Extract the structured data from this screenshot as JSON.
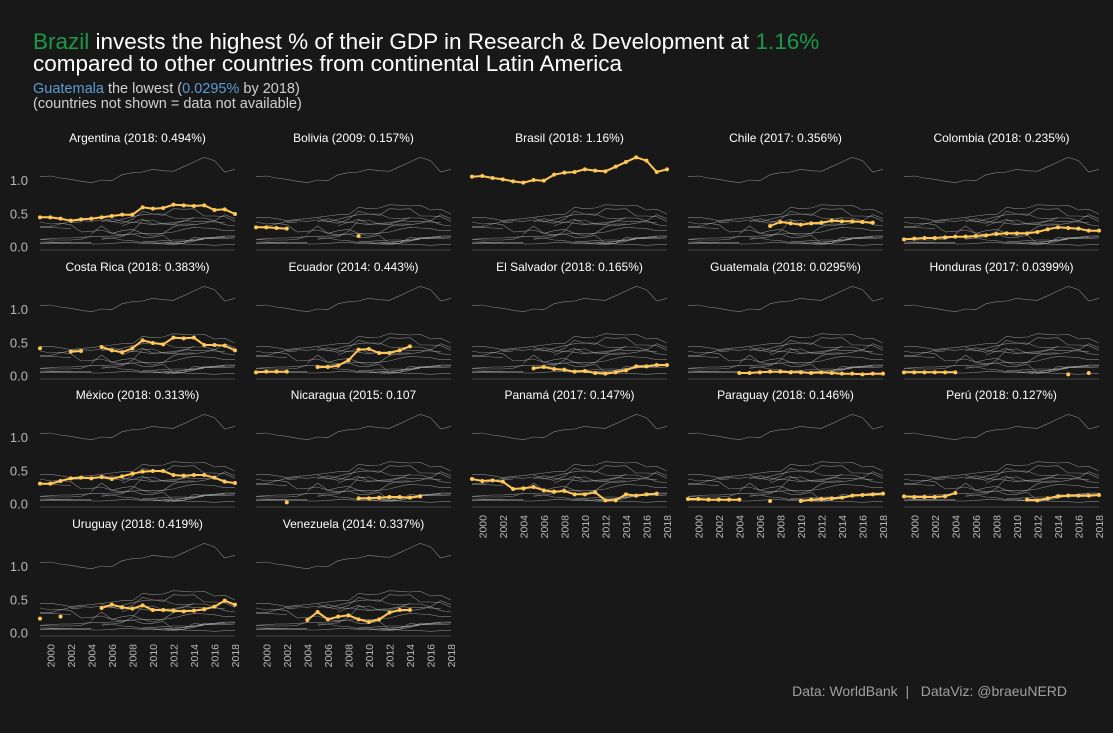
{
  "title": {
    "line1": [
      {
        "text": "Brazil",
        "cls": "hl-green"
      },
      {
        "text": " invests the highest % of their GDP in Research & Development at ",
        "cls": ""
      },
      {
        "text": "1.16%",
        "cls": "hl-green"
      }
    ],
    "line2": "compared to other countries from continental Latin America"
  },
  "subtitle": {
    "line1": [
      {
        "text": "Guatemala",
        "cls": "hl-blue"
      },
      {
        "text": " the lowest (",
        "cls": ""
      },
      {
        "text": "0.0295%",
        "cls": "hl-blue"
      },
      {
        "text": " by 2018)",
        "cls": ""
      }
    ],
    "line2": "(countries not shown = data not available)"
  },
  "caption": "Data: WorldBank  |   DataViz: @braeuNERD",
  "colors": {
    "background": "#181818",
    "highlight": "#ffc857",
    "context": "#a8a8a8",
    "green": "#1a9a45",
    "blue": "#5b9bd5"
  },
  "chart_data": {
    "type": "line",
    "layout": "small-multiples",
    "x_ticks": [
      2000,
      2002,
      2004,
      2006,
      2008,
      2010,
      2012,
      2014,
      2016,
      2018
    ],
    "xlim": [
      1999,
      2018
    ],
    "y_ticks": [
      0.0,
      0.5,
      1.0
    ],
    "ylim": [
      -0.05,
      1.45
    ],
    "series": [
      {
        "name": "Argentina (2018: 0.494%)",
        "x": [
          1999,
          2000,
          2001,
          2002,
          2003,
          2004,
          2005,
          2006,
          2007,
          2008,
          2009,
          2010,
          2011,
          2012,
          2013,
          2014,
          2015,
          2016,
          2017,
          2018
        ],
        "values": [
          0.44,
          0.44,
          0.42,
          0.39,
          0.41,
          0.42,
          0.44,
          0.46,
          0.48,
          0.48,
          0.59,
          0.57,
          0.58,
          0.63,
          0.62,
          0.61,
          0.62,
          0.55,
          0.56,
          0.49
        ]
      },
      {
        "name": "Bolivia (2009: 0.157%)",
        "x": [
          1999,
          2000,
          2001,
          2002,
          2009
        ],
        "values": [
          0.29,
          0.29,
          0.28,
          0.27,
          0.16
        ]
      },
      {
        "name": "Brasil (2018: 1.16%)",
        "x": [
          1999,
          2000,
          2001,
          2002,
          2003,
          2004,
          2005,
          2006,
          2007,
          2008,
          2009,
          2010,
          2011,
          2012,
          2013,
          2014,
          2015,
          2016,
          2017,
          2018
        ],
        "values": [
          1.05,
          1.06,
          1.03,
          1.01,
          0.98,
          0.96,
          1.0,
          0.99,
          1.08,
          1.11,
          1.12,
          1.16,
          1.14,
          1.13,
          1.2,
          1.27,
          1.34,
          1.29,
          1.12,
          1.16
        ]
      },
      {
        "name": "Chile (2017: 0.356%)",
        "x": [
          2007,
          2008,
          2009,
          2010,
          2011,
          2012,
          2013,
          2014,
          2015,
          2016,
          2017
        ],
        "values": [
          0.31,
          0.37,
          0.35,
          0.33,
          0.35,
          0.36,
          0.39,
          0.38,
          0.38,
          0.37,
          0.36
        ]
      },
      {
        "name": "Colombia (2018: 0.235%)",
        "x": [
          1999,
          2000,
          2001,
          2002,
          2003,
          2004,
          2005,
          2006,
          2007,
          2008,
          2009,
          2010,
          2011,
          2012,
          2013,
          2014,
          2015,
          2016,
          2017,
          2018
        ],
        "values": [
          0.11,
          0.12,
          0.13,
          0.13,
          0.14,
          0.15,
          0.15,
          0.16,
          0.17,
          0.19,
          0.2,
          0.2,
          0.2,
          0.22,
          0.26,
          0.29,
          0.28,
          0.27,
          0.24,
          0.24
        ]
      },
      {
        "name": "Costa Rica (2018: 0.383%)",
        "x": [
          1999,
          2000,
          2002,
          2003,
          2005,
          2006,
          2007,
          2008,
          2009,
          2010,
          2011,
          2012,
          2013,
          2014,
          2015,
          2016,
          2017,
          2018
        ],
        "values": [
          0.41,
          null,
          0.36,
          0.37,
          0.43,
          0.38,
          0.35,
          0.41,
          0.53,
          0.49,
          0.47,
          0.57,
          0.56,
          0.57,
          0.46,
          0.46,
          0.45,
          0.38
        ]
      },
      {
        "name": "Ecuador (2014: 0.443%)",
        "x": [
          1999,
          2000,
          2001,
          2002,
          2005,
          2006,
          2007,
          2008,
          2009,
          2010,
          2011,
          2012,
          2013,
          2014
        ],
        "values": [
          0.05,
          0.06,
          0.06,
          0.06,
          0.13,
          0.13,
          0.15,
          0.23,
          0.39,
          0.4,
          0.34,
          0.34,
          0.38,
          0.44
        ]
      },
      {
        "name": "El Salvador (2018: 0.165%)",
        "x": [
          2005,
          2006,
          2007,
          2008,
          2009,
          2010,
          2011,
          2012,
          2013,
          2014,
          2015,
          2016,
          2017,
          2018
        ],
        "values": [
          0.11,
          0.13,
          0.1,
          0.09,
          0.06,
          0.07,
          0.04,
          0.03,
          0.05,
          0.08,
          0.14,
          0.14,
          0.16,
          0.16
        ]
      },
      {
        "name": "Guatemala (2018: 0.0295%)",
        "x": [
          2004,
          2005,
          2006,
          2007,
          2008,
          2009,
          2010,
          2011,
          2012,
          2013,
          2014,
          2015,
          2016,
          2017,
          2018
        ],
        "values": [
          0.04,
          0.04,
          0.05,
          0.06,
          0.06,
          0.05,
          0.05,
          0.04,
          0.05,
          0.04,
          0.03,
          0.03,
          0.02,
          0.03,
          0.03
        ]
      },
      {
        "name": "Honduras (2017: 0.0399%)",
        "x": [
          1999,
          2000,
          2001,
          2002,
          2003,
          2004,
          2015,
          2017
        ],
        "values": [
          0.05,
          0.05,
          0.05,
          0.05,
          0.05,
          0.05,
          0.02,
          0.04
        ]
      },
      {
        "name": "México (2018: 0.313%)",
        "x": [
          1999,
          2000,
          2001,
          2002,
          2003,
          2004,
          2005,
          2006,
          2007,
          2008,
          2009,
          2010,
          2011,
          2012,
          2013,
          2014,
          2015,
          2016,
          2017,
          2018
        ],
        "values": [
          0.3,
          0.3,
          0.34,
          0.38,
          0.39,
          0.38,
          0.4,
          0.37,
          0.41,
          0.45,
          0.48,
          0.49,
          0.49,
          0.43,
          0.42,
          0.43,
          0.43,
          0.39,
          0.33,
          0.31
        ]
      },
      {
        "name": "Nicaragua (2015: 0.107",
        "x": [
          2002,
          2009,
          2010,
          2011,
          2012,
          2013,
          2014,
          2015
        ],
        "values": [
          0.02,
          0.08,
          0.08,
          0.09,
          0.1,
          0.1,
          0.09,
          0.11
        ]
      },
      {
        "name": "Panamá (2017: 0.147%)",
        "x": [
          1999,
          2000,
          2001,
          2002,
          2003,
          2004,
          2005,
          2006,
          2007,
          2008,
          2009,
          2010,
          2011,
          2012,
          2013,
          2014,
          2015,
          2016,
          2017
        ],
        "values": [
          0.37,
          0.34,
          0.35,
          0.33,
          0.22,
          0.23,
          0.25,
          0.2,
          0.18,
          0.19,
          0.14,
          0.14,
          0.17,
          0.05,
          0.05,
          0.14,
          0.12,
          0.14,
          0.15
        ]
      },
      {
        "name": "Paraguay (2018: 0.146%)",
        "x": [
          1999,
          2000,
          2001,
          2002,
          2003,
          2004,
          2007,
          2010,
          2011,
          2012,
          2013,
          2014,
          2015,
          2016,
          2017,
          2018
        ],
        "values": [
          0.07,
          0.07,
          0.06,
          0.06,
          0.06,
          0.06,
          0.04,
          0.04,
          0.06,
          0.07,
          0.08,
          0.09,
          0.12,
          0.13,
          0.14,
          0.15
        ]
      },
      {
        "name": "Perú (2018: 0.127%)",
        "x": [
          1999,
          2000,
          2001,
          2002,
          2003,
          2004,
          2011,
          2012,
          2013,
          2014,
          2015,
          2016,
          2017,
          2018
        ],
        "values": [
          0.11,
          0.1,
          0.1,
          0.1,
          0.11,
          0.16,
          0.06,
          0.05,
          0.08,
          0.11,
          0.12,
          0.12,
          0.12,
          0.13
        ]
      },
      {
        "name": "Uruguay (2018: 0.419%)",
        "x": [
          1999,
          2001,
          2005,
          2006,
          2007,
          2008,
          2009,
          2010,
          2011,
          2012,
          2013,
          2014,
          2015,
          2016,
          2017,
          2018
        ],
        "values": [
          0.21,
          0.24,
          0.37,
          0.42,
          0.38,
          0.36,
          0.41,
          0.34,
          0.34,
          0.33,
          0.32,
          0.33,
          0.35,
          0.39,
          0.48,
          0.42
        ]
      },
      {
        "name": "Venezuela (2014: 0.337%)",
        "x": [
          2004,
          2005,
          2006,
          2007,
          2008,
          2009,
          2010,
          2011,
          2012,
          2013,
          2014
        ],
        "values": [
          0.19,
          0.31,
          0.2,
          0.24,
          0.26,
          0.2,
          0.16,
          0.2,
          0.3,
          0.34,
          0.34
        ]
      }
    ]
  }
}
